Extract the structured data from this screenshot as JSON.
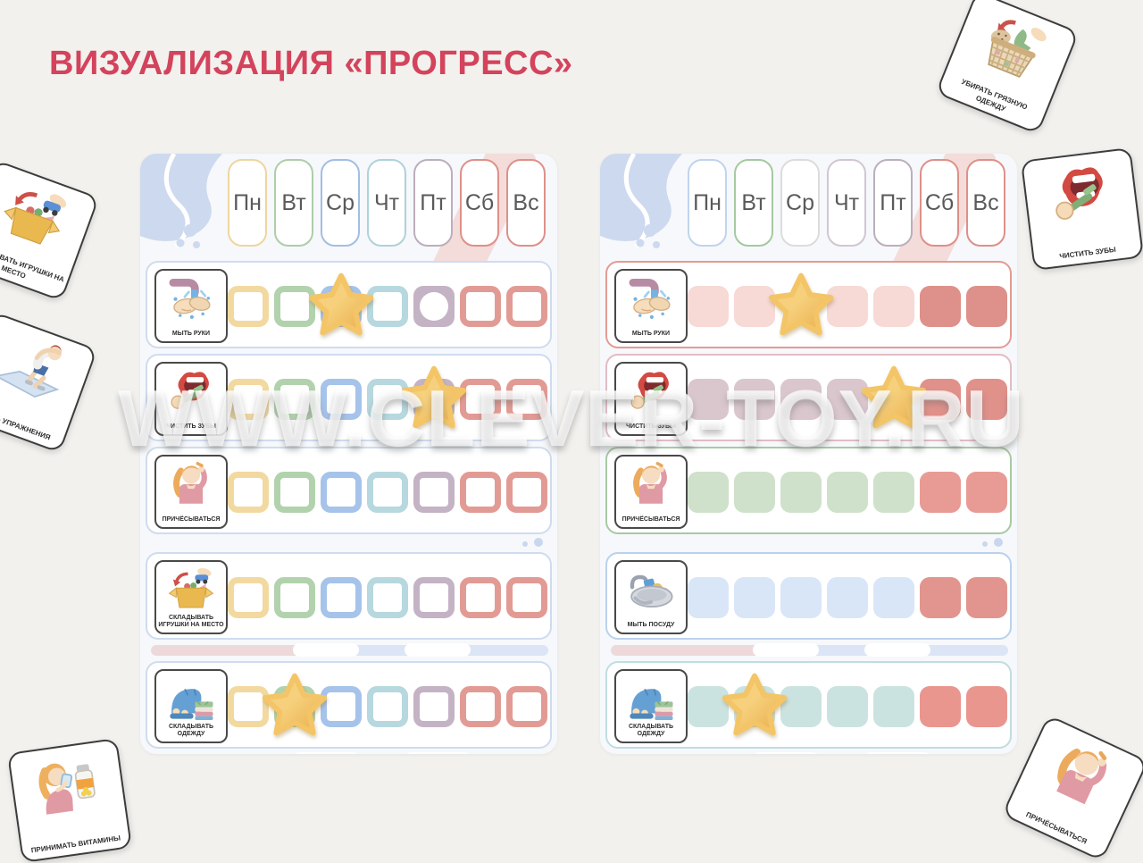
{
  "title": "ВИЗУАЛИЗАЦИЯ «ПРОГРЕСС»",
  "watermark": "WWW.CLEVER-TOY.RU",
  "colors": {
    "title_accent": "#d4435c",
    "background": "#f2f1ee",
    "star": "#f2c368"
  },
  "days": [
    "Пн",
    "Вт",
    "Ср",
    "Чт",
    "Пт",
    "Сб",
    "Вс"
  ],
  "boards": [
    {
      "id": "left",
      "cell_style": "outline",
      "row_border_color": "#cfdcef",
      "day_border_colors": [
        "#edd6a0",
        "#aecda9",
        "#a2bee4",
        "#aed2da",
        "#bcaebc",
        "#de9089",
        "#de9089"
      ],
      "rows": [
        {
          "label": "МЫТЬ РУКИ",
          "icon": "wash-hands-icon",
          "cells": [
            {
              "variant": "outline",
              "color": "#f2d9a0"
            },
            {
              "variant": "outline",
              "color": "#b2d2ad"
            },
            {
              "variant": "outline",
              "color": "#a6c3ea",
              "star": true
            },
            {
              "variant": "outline",
              "color": "#b6d8de"
            },
            {
              "variant": "circle",
              "color": "#c4b3c4"
            },
            {
              "variant": "outline",
              "color": "#e29b94"
            },
            {
              "variant": "outline",
              "color": "#e29b94"
            }
          ]
        },
        {
          "label": "ЧИСТИТЬ ЗУБЫ",
          "icon": "brush-teeth-icon",
          "cells": [
            {
              "variant": "outline",
              "color": "#f2d9a0"
            },
            {
              "variant": "outline",
              "color": "#b2d2ad"
            },
            {
              "variant": "outline",
              "color": "#a6c3ea"
            },
            {
              "variant": "outline",
              "color": "#b6d8de"
            },
            {
              "variant": "outline",
              "color": "#c4b3c4",
              "star": true
            },
            {
              "variant": "outline",
              "color": "#e29b94"
            },
            {
              "variant": "outline",
              "color": "#e29b94"
            }
          ]
        },
        {
          "label": "ПРИЧЁСЫВАТЬСЯ",
          "icon": "comb-hair-icon",
          "cells": [
            {
              "variant": "outline",
              "color": "#f2d9a0"
            },
            {
              "variant": "outline",
              "color": "#b2d2ad"
            },
            {
              "variant": "outline",
              "color": "#a6c3ea"
            },
            {
              "variant": "outline",
              "color": "#b6d8de"
            },
            {
              "variant": "outline",
              "color": "#c4b3c4"
            },
            {
              "variant": "outline",
              "color": "#e29b94"
            },
            {
              "variant": "outline",
              "color": "#e29b94"
            }
          ]
        },
        {
          "label": "СКЛАДЫВАТЬ ИГРУШКИ НА МЕСТО",
          "icon": "toys-box-icon",
          "cells": [
            {
              "variant": "outline",
              "color": "#f2d9a0"
            },
            {
              "variant": "outline",
              "color": "#b2d2ad"
            },
            {
              "variant": "outline",
              "color": "#a6c3ea"
            },
            {
              "variant": "outline",
              "color": "#b6d8de"
            },
            {
              "variant": "outline",
              "color": "#c4b3c4"
            },
            {
              "variant": "outline",
              "color": "#e29b94"
            },
            {
              "variant": "outline",
              "color": "#e29b94"
            }
          ]
        },
        {
          "label": "СКЛАДЫВАТЬ ОДЕЖДУ",
          "icon": "fold-clothes-icon",
          "cells": [
            {
              "variant": "outline",
              "color": "#f2d9a0"
            },
            {
              "variant": "outline",
              "color": "#b2d2ad",
              "star": true
            },
            {
              "variant": "outline",
              "color": "#a6c3ea"
            },
            {
              "variant": "outline",
              "color": "#b6d8de"
            },
            {
              "variant": "outline",
              "color": "#c4b3c4"
            },
            {
              "variant": "outline",
              "color": "#e29b94"
            },
            {
              "variant": "outline",
              "color": "#e29b94"
            }
          ]
        }
      ]
    },
    {
      "id": "right",
      "cell_style": "solid",
      "row_border_color": "#cfdcef",
      "day_border_colors": [
        "#c0d4ec",
        "#a6c8a1",
        "#dcdcdc",
        "#d2c6d2",
        "#bcaebc",
        "#de9089",
        "#de9089"
      ],
      "rows": [
        {
          "label": "МЫТЬ РУКИ",
          "icon": "wash-hands-icon",
          "border": "#e59a92",
          "cells": [
            {
              "variant": "solid",
              "color": "#f7d9d5"
            },
            {
              "variant": "solid",
              "color": "#f7d9d5"
            },
            {
              "variant": "blank",
              "star": true
            },
            {
              "variant": "solid",
              "color": "#f7d9d5"
            },
            {
              "variant": "solid",
              "color": "#f7d9d5"
            },
            {
              "variant": "solid",
              "color": "#dd918a"
            },
            {
              "variant": "solid",
              "color": "#dd918a"
            }
          ]
        },
        {
          "label": "ЧИСТИТЬ ЗУБЫ",
          "icon": "brush-teeth-icon",
          "border": "#e2bcc3",
          "cells": [
            {
              "variant": "solid",
              "color": "#dac7cd"
            },
            {
              "variant": "solid",
              "color": "#dac7cd"
            },
            {
              "variant": "solid",
              "color": "#dac7cd"
            },
            {
              "variant": "solid",
              "color": "#dac7cd"
            },
            {
              "variant": "blank",
              "star": true
            },
            {
              "variant": "solid",
              "color": "#e0918a"
            },
            {
              "variant": "solid",
              "color": "#e0918a"
            }
          ]
        },
        {
          "label": "ПРИЧЁСЫВАТЬСЯ",
          "icon": "comb-hair-icon",
          "border": "#a8c9a3",
          "cells": [
            {
              "variant": "solid",
              "color": "#cfe1cb"
            },
            {
              "variant": "solid",
              "color": "#cfe1cb"
            },
            {
              "variant": "solid",
              "color": "#cfe1cb"
            },
            {
              "variant": "solid",
              "color": "#cfe1cb"
            },
            {
              "variant": "solid",
              "color": "#cfe1cb"
            },
            {
              "variant": "solid",
              "color": "#e89b94"
            },
            {
              "variant": "solid",
              "color": "#e89b94"
            }
          ]
        },
        {
          "label": "МЫТЬ ПОСУДУ",
          "icon": "wash-dishes-icon",
          "border": "#bad2ec",
          "cells": [
            {
              "variant": "solid",
              "color": "#d9e6f7"
            },
            {
              "variant": "solid",
              "color": "#d9e6f7"
            },
            {
              "variant": "solid",
              "color": "#d9e6f7"
            },
            {
              "variant": "solid",
              "color": "#d9e6f7"
            },
            {
              "variant": "solid",
              "color": "#d9e6f7"
            },
            {
              "variant": "solid",
              "color": "#e1958e"
            },
            {
              "variant": "solid",
              "color": "#e1958e"
            }
          ]
        },
        {
          "label": "СКЛАДЫВАТЬ ОДЕЖДУ",
          "icon": "fold-clothes-icon",
          "border": "#c0dde2",
          "cells": [
            {
              "variant": "solid",
              "color": "#cbe3e0"
            },
            {
              "variant": "solid",
              "color": "#cbe3e0",
              "star": true
            },
            {
              "variant": "solid",
              "color": "#cbe3e0"
            },
            {
              "variant": "solid",
              "color": "#cbe3e0"
            },
            {
              "variant": "solid",
              "color": "#cbe3e0"
            },
            {
              "variant": "solid",
              "color": "#e9968f"
            },
            {
              "variant": "solid",
              "color": "#e9968f"
            }
          ]
        }
      ]
    }
  ],
  "cards": [
    {
      "label": "СКЛАДЫВАТЬ ИГРУШКИ НА МЕСТО",
      "icon": "toys-box-icon"
    },
    {
      "label": "ДЕЛАТЬ УПРАЖНЕНИЯ",
      "icon": "exercise-icon"
    },
    {
      "label": "ПРИНИМАТЬ ВИТАМИНЫ",
      "icon": "vitamins-icon"
    },
    {
      "label": "УБИРАТЬ ГРЯЗНУЮ ОДЕЖДУ",
      "icon": "laundry-basket-icon"
    },
    {
      "label": "ЧИСТИТЬ ЗУБЫ",
      "icon": "brush-teeth-icon"
    },
    {
      "label": "ПРИЧЁСЫВАТЬСЯ",
      "icon": "comb-hair-icon"
    }
  ]
}
